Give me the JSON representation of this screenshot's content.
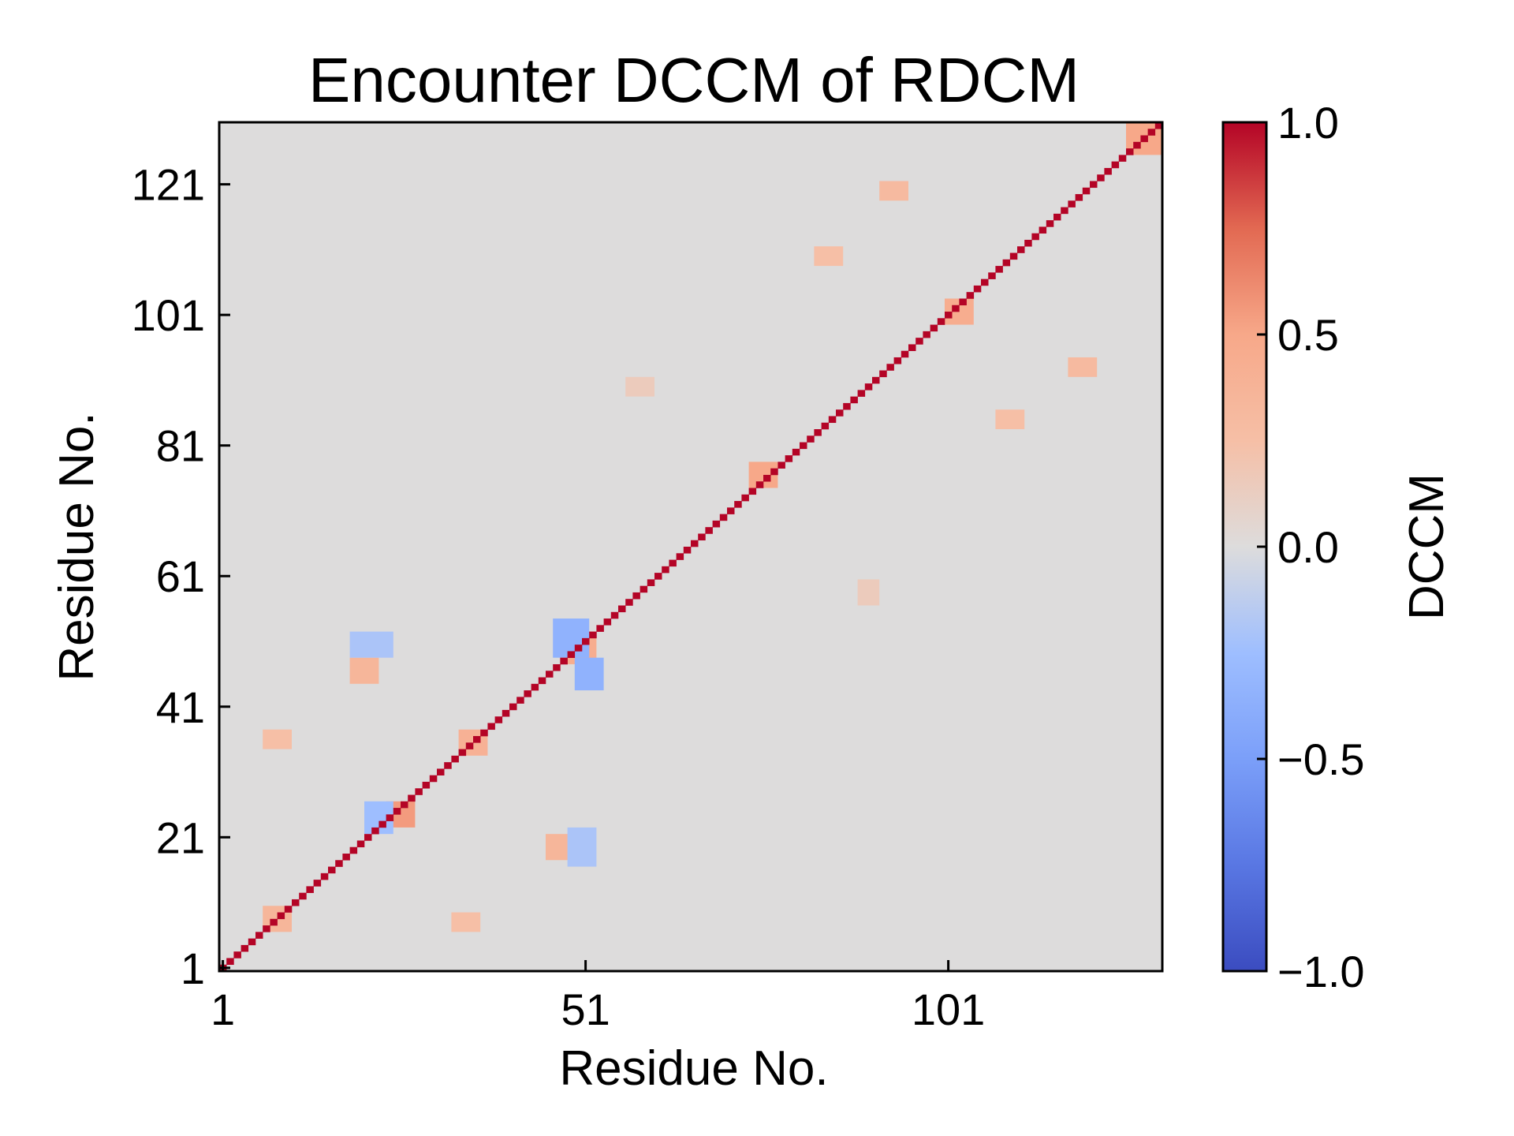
{
  "chart_data": {
    "type": "heatmap",
    "title": "Encounter DCCM of RDCM",
    "xlabel": "Residue No.",
    "ylabel": "Residue No.",
    "n_residues": 130,
    "x_ticks": [
      "1",
      "51",
      "101"
    ],
    "x_tick_values": [
      1,
      51,
      101
    ],
    "y_ticks": [
      "1",
      "21",
      "41",
      "61",
      "81",
      "101",
      "121"
    ],
    "y_tick_values": [
      1,
      21,
      41,
      61,
      81,
      101,
      121
    ],
    "colorbar": {
      "label": "DCCM",
      "ticks": [
        "1.0",
        "0.5",
        "0.0",
        "−0.5",
        "−1.0"
      ],
      "tick_values": [
        1.0,
        0.5,
        0.0,
        -0.5,
        -1.0
      ],
      "range": [
        -1.0,
        1.0
      ],
      "colormap": "coolwarm"
    },
    "background_value": 0.0,
    "diagonal_value": 1.0,
    "patches": [
      {
        "x": [
          48,
          52
        ],
        "y": [
          48,
          52
        ],
        "value": 0.45
      },
      {
        "x": [
          47,
          51
        ],
        "y": [
          49,
          54
        ],
        "value": -0.35
      },
      {
        "x": [
          50,
          53
        ],
        "y": [
          44,
          48
        ],
        "value": -0.35
      },
      {
        "x": [
          19,
          22
        ],
        "y": [
          45,
          48
        ],
        "value": 0.35
      },
      {
        "x": [
          19,
          24
        ],
        "y": [
          49,
          52
        ],
        "value": -0.2
      },
      {
        "x": [
          46,
          49
        ],
        "y": [
          18,
          21
        ],
        "value": 0.35
      },
      {
        "x": [
          49,
          52
        ],
        "y": [
          17,
          22
        ],
        "value": -0.2
      },
      {
        "x": [
          24,
          27
        ],
        "y": [
          23,
          26
        ],
        "value": 0.55
      },
      {
        "x": [
          21,
          24
        ],
        "y": [
          22,
          26
        ],
        "value": -0.25
      },
      {
        "x": [
          34,
          37
        ],
        "y": [
          34,
          37
        ],
        "value": 0.4
      },
      {
        "x": [
          74,
          77
        ],
        "y": [
          75,
          78
        ],
        "value": 0.5
      },
      {
        "x": [
          101,
          104
        ],
        "y": [
          100,
          103
        ],
        "value": 0.45
      },
      {
        "x": [
          126,
          130
        ],
        "y": [
          126,
          130
        ],
        "value": 0.5
      },
      {
        "x": [
          7,
          10
        ],
        "y": [
          7,
          10
        ],
        "value": 0.35
      },
      {
        "x": [
          118,
          121
        ],
        "y": [
          92,
          94
        ],
        "value": 0.3
      },
      {
        "x": [
          92,
          95
        ],
        "y": [
          119,
          121
        ],
        "value": 0.3
      },
      {
        "x": [
          83,
          86
        ],
        "y": [
          109,
          111
        ],
        "value": 0.25
      },
      {
        "x": [
          108,
          111
        ],
        "y": [
          84,
          86
        ],
        "value": 0.25
      },
      {
        "x": [
          7,
          10
        ],
        "y": [
          35,
          37
        ],
        "value": 0.25
      },
      {
        "x": [
          33,
          36
        ],
        "y": [
          7,
          9
        ],
        "value": 0.25
      },
      {
        "x": [
          57,
          60
        ],
        "y": [
          89,
          91
        ],
        "value": 0.15
      },
      {
        "x": [
          89,
          91
        ],
        "y": [
          57,
          60
        ],
        "value": 0.15
      }
    ]
  }
}
